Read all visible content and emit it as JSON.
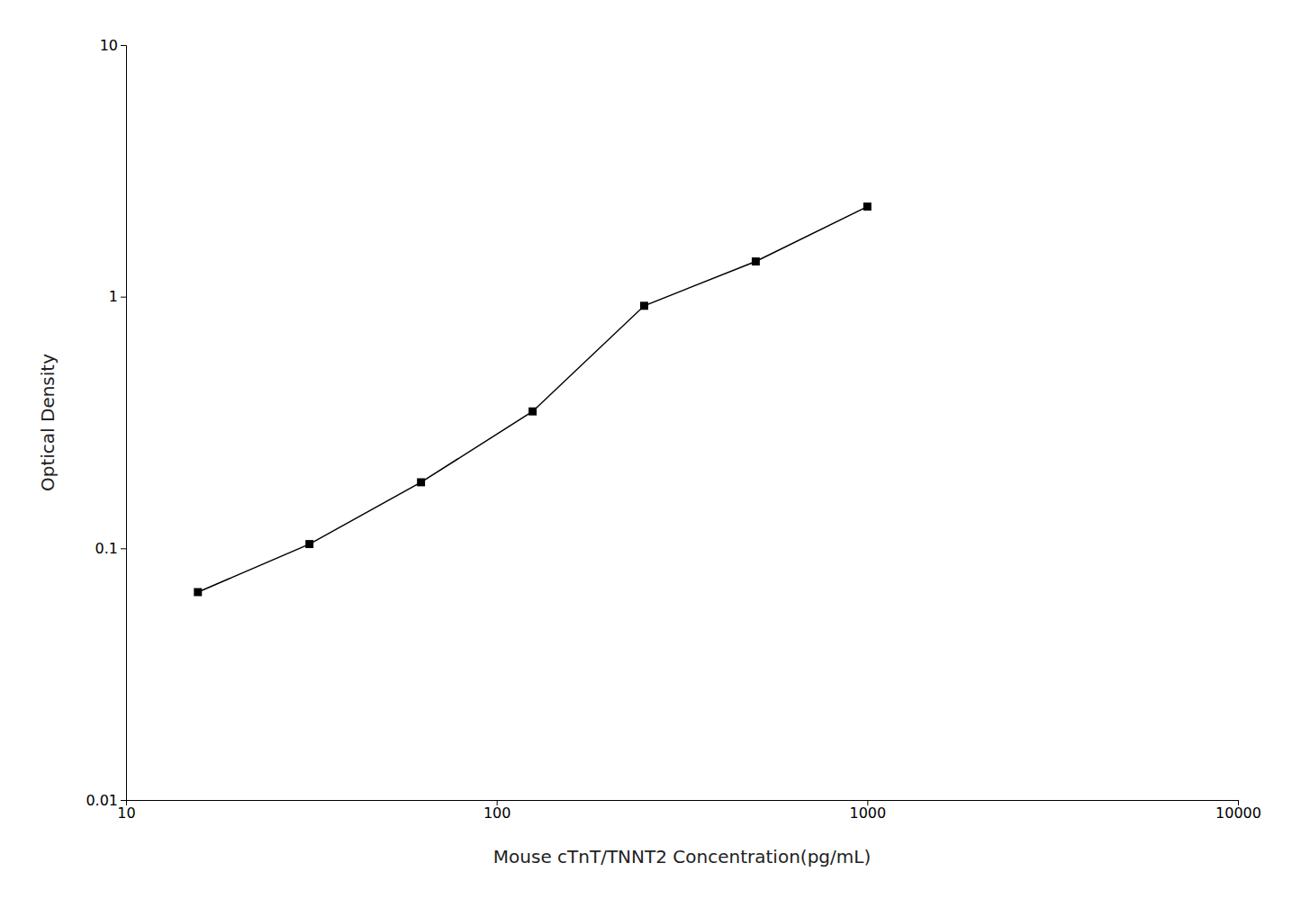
{
  "chart_data": {
    "type": "line",
    "xlabel": "Mouse cTnT/TNNT2 Concentration(pg/mL)",
    "ylabel": "Optical Density",
    "x": [
      15.625,
      31.25,
      62.5,
      125,
      250,
      500,
      1000
    ],
    "values": [
      0.067,
      0.104,
      0.183,
      0.35,
      0.92,
      1.38,
      2.28
    ],
    "xlim": [
      10,
      10000
    ],
    "ylim": [
      0.01,
      10
    ],
    "xticks": [
      10,
      100,
      1000,
      10000
    ],
    "yticks": [
      0.01,
      0.1,
      1,
      10
    ],
    "log": true,
    "grid": false,
    "color": "#000000",
    "marker": "square"
  }
}
